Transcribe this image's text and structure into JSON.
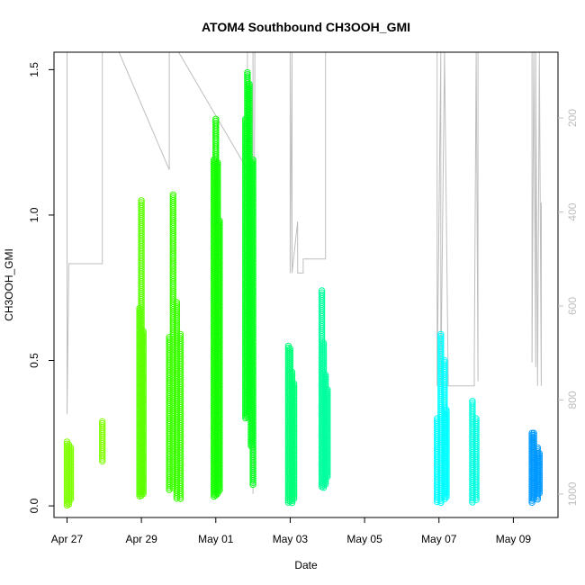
{
  "chart_data": {
    "type": "scatter",
    "title": "ATOM4 Southbound CH3OOH_GMI",
    "xlabel": "Date",
    "ylabel": "CH3OOH_GMI",
    "x_ticks": [
      "Apr 27",
      "Apr 29",
      "May 01",
      "May 03",
      "May 05",
      "May 07",
      "May 09"
    ],
    "x_tick_days": [
      0,
      2,
      4,
      6,
      8,
      10,
      12
    ],
    "xlim_days": [
      -0.35,
      13.2
    ],
    "ylim": [
      -0.04,
      1.56
    ],
    "y_ticks": [
      0.0,
      0.5,
      1.0,
      1.5
    ],
    "y_tick_labels": [
      "0.0",
      "0.5",
      "1.0",
      "1.5"
    ],
    "y2_label": "",
    "y2_ticks": [
      200,
      400,
      600,
      800,
      1000
    ],
    "y2_tick_labels": [
      "200",
      "400",
      "600",
      "800",
      "1000"
    ],
    "y2_range_top_to_bottom": [
      60,
      1050
    ],
    "grid": false,
    "legend": "none",
    "colors": {
      "axis": "#000000",
      "pressure_line": "#bebebe"
    },
    "series": [
      {
        "color": "#7fff00",
        "points": [
          {
            "day": 0.0,
            "min": 0.0,
            "max": 0.22
          },
          {
            "day": 0.05,
            "min": 0.0,
            "max": 0.21
          },
          {
            "day": 0.1,
            "min": 0.02,
            "max": 0.2
          },
          {
            "day": 0.95,
            "min": 0.15,
            "max": 0.29
          }
        ]
      },
      {
        "color": "#5cff00",
        "points": [
          {
            "day": 1.95,
            "min": 0.03,
            "max": 0.68
          },
          {
            "day": 2.0,
            "min": 0.03,
            "max": 1.05
          },
          {
            "day": 2.05,
            "min": 0.04,
            "max": 0.6
          }
        ]
      },
      {
        "color": "#3cff00",
        "points": [
          {
            "day": 2.75,
            "min": 0.05,
            "max": 0.58
          },
          {
            "day": 2.85,
            "min": 0.06,
            "max": 1.07
          },
          {
            "day": 2.95,
            "min": 0.02,
            "max": 0.7
          },
          {
            "day": 3.05,
            "min": 0.02,
            "max": 0.59
          }
        ]
      },
      {
        "color": "#14ff00",
        "points": [
          {
            "day": 3.95,
            "min": 0.03,
            "max": 1.19
          },
          {
            "day": 4.0,
            "min": 0.03,
            "max": 1.33
          },
          {
            "day": 4.05,
            "min": 0.04,
            "max": 1.18
          },
          {
            "day": 4.1,
            "min": 0.05,
            "max": 0.98
          }
        ]
      },
      {
        "color": "#00ff1a",
        "points": [
          {
            "day": 4.8,
            "min": 0.3,
            "max": 1.33
          },
          {
            "day": 4.85,
            "min": 0.3,
            "max": 1.49
          },
          {
            "day": 4.9,
            "min": 0.32,
            "max": 1.45
          },
          {
            "day": 4.95,
            "min": 0.2,
            "max": 1.18
          },
          {
            "day": 5.0,
            "min": 0.07,
            "max": 1.19
          }
        ]
      },
      {
        "color": "#00ff7a",
        "points": [
          {
            "day": 5.95,
            "min": 0.01,
            "max": 0.55
          },
          {
            "day": 6.0,
            "min": 0.01,
            "max": 0.54
          },
          {
            "day": 6.05,
            "min": 0.01,
            "max": 0.46
          },
          {
            "day": 6.1,
            "min": 0.02,
            "max": 0.42
          }
        ]
      },
      {
        "color": "#00ff9e",
        "points": [
          {
            "day": 6.85,
            "min": 0.06,
            "max": 0.74
          },
          {
            "day": 6.9,
            "min": 0.06,
            "max": 0.56
          },
          {
            "day": 6.95,
            "min": 0.07,
            "max": 0.45
          },
          {
            "day": 7.0,
            "min": 0.1,
            "max": 0.4
          }
        ]
      },
      {
        "color": "#00ffff",
        "points": [
          {
            "day": 9.95,
            "min": 0.01,
            "max": 0.3
          },
          {
            "day": 10.05,
            "min": 0.01,
            "max": 0.59
          },
          {
            "day": 10.15,
            "min": 0.02,
            "max": 0.5
          },
          {
            "day": 10.2,
            "min": 0.03,
            "max": 0.33
          }
        ]
      },
      {
        "color": "#00ffe0",
        "points": [
          {
            "day": 10.9,
            "min": 0.01,
            "max": 0.36
          },
          {
            "day": 11.0,
            "min": 0.02,
            "max": 0.3
          }
        ]
      },
      {
        "color": "#0099ff",
        "points": [
          {
            "day": 12.5,
            "min": 0.01,
            "max": 0.25
          },
          {
            "day": 12.55,
            "min": 0.02,
            "max": 0.25
          },
          {
            "day": 12.65,
            "min": 0.02,
            "max": 0.2
          },
          {
            "day": 12.7,
            "min": 0.04,
            "max": 0.18
          }
        ]
      }
    ],
    "pressure_trace": [
      [
        0.0,
        60
      ],
      [
        0.0,
        830
      ],
      [
        0.05,
        510
      ],
      [
        0.95,
        510
      ],
      [
        0.95,
        60
      ],
      [
        1.4,
        60
      ],
      [
        2.75,
        310
      ],
      [
        2.75,
        60
      ],
      [
        3.0,
        60
      ],
      [
        4.85,
        310
      ],
      [
        4.85,
        60
      ],
      [
        5.0,
        60
      ],
      [
        5.0,
        1000
      ],
      [
        5.05,
        60
      ],
      [
        6.0,
        60
      ],
      [
        6.0,
        530
      ],
      [
        6.05,
        60
      ],
      [
        6.05,
        530
      ],
      [
        6.2,
        420
      ],
      [
        6.2,
        530
      ],
      [
        6.35,
        530
      ],
      [
        6.35,
        500
      ],
      [
        6.95,
        500
      ],
      [
        6.95,
        60
      ],
      [
        9.95,
        60
      ],
      [
        9.95,
        770
      ],
      [
        10.05,
        60
      ],
      [
        10.05,
        770
      ],
      [
        10.15,
        60
      ],
      [
        10.25,
        770
      ],
      [
        10.95,
        770
      ],
      [
        10.95,
        720
      ],
      [
        11.0,
        60
      ],
      [
        11.05,
        760
      ],
      [
        11.05,
        60
      ],
      [
        12.5,
        60
      ],
      [
        12.5,
        720
      ],
      [
        12.55,
        60
      ],
      [
        12.6,
        730
      ],
      [
        12.6,
        60
      ],
      [
        12.65,
        770
      ],
      [
        12.7,
        60
      ],
      [
        12.75,
        770
      ],
      [
        12.75,
        380
      ]
    ]
  }
}
